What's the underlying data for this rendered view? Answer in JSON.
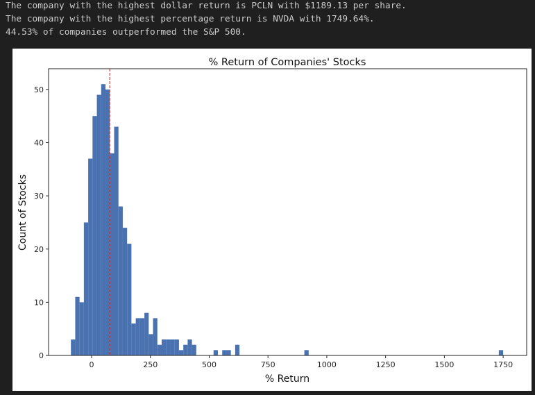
{
  "output_lines": [
    "The company with the highest dollar return is PCLN with $1189.13 per share.",
    "The company with the highest percentage return is NVDA with 1749.64%.",
    "44.53% of companies outperformed the S&P 500."
  ],
  "chart_data": {
    "type": "histogram",
    "title": "% Return of Companies' Stocks",
    "x_label": "% Return",
    "y_label": "Count of Stocks",
    "color": "#4a72b0",
    "bins": [
      -88,
      -69.62,
      -51.24,
      -32.86,
      -14.48,
      3.9,
      22.28,
      40.66,
      59.04,
      77.42,
      95.8,
      114.18,
      132.56,
      150.94,
      169.32,
      187.7,
      206.08,
      224.46,
      242.84,
      261.22,
      279.6,
      297.98,
      316.36,
      334.74,
      353.12,
      371.5,
      389.88,
      408.26,
      426.64,
      445.02,
      463.4,
      481.78,
      500.16,
      518.54,
      536.92,
      555.3,
      573.68,
      592.06,
      610.44,
      628.82,
      647.2,
      665.58,
      683.96,
      702.34,
      720.72,
      739.1,
      757.48,
      775.86,
      794.24,
      812.62,
      831,
      849.38,
      867.76,
      886.14,
      904.52,
      922.9,
      941.28,
      959.66,
      978.04,
      996.42,
      1014.8,
      1033.18,
      1051.56,
      1069.94,
      1088.32,
      1106.7,
      1125.08,
      1143.46,
      1161.84,
      1180.22,
      1198.6,
      1216.98,
      1235.36,
      1253.74,
      1272.12,
      1290.5,
      1308.88,
      1327.26,
      1345.64,
      1364.02,
      1382.4,
      1400.78,
      1419.16,
      1437.54,
      1455.92,
      1474.3,
      1492.68,
      1511.06,
      1529.44,
      1547.82,
      1566.2,
      1584.58,
      1602.96,
      1621.34,
      1639.72,
      1658.1,
      1676.48,
      1694.86,
      1713.24,
      1731.62,
      1750
    ],
    "counts": [
      3,
      11,
      10,
      25,
      37,
      45,
      49,
      51,
      50,
      38,
      43,
      28,
      24,
      21,
      6,
      7,
      7,
      8,
      4,
      7,
      2,
      3,
      3,
      3,
      3,
      1,
      2,
      3,
      2,
      0,
      0,
      0,
      0,
      1,
      0,
      1,
      1,
      0,
      2,
      0,
      0,
      0,
      0,
      0,
      0,
      0,
      0,
      0,
      0,
      0,
      0,
      0,
      0,
      0,
      1,
      0,
      0,
      0,
      0,
      0,
      0,
      0,
      0,
      0,
      0,
      0,
      0,
      0,
      0,
      0,
      0,
      0,
      0,
      0,
      0,
      0,
      0,
      0,
      0,
      0,
      0,
      0,
      0,
      0,
      0,
      0,
      0,
      0,
      0,
      0,
      0,
      0,
      0,
      0,
      0,
      0,
      0,
      0,
      0,
      1
    ],
    "vline": 77,
    "vline_color": "#d62728",
    "xlim": [
      -183,
      1850
    ],
    "ylim": [
      0,
      53.9
    ],
    "xticks": [
      0,
      250,
      500,
      750,
      1000,
      1250,
      1500,
      1750
    ],
    "yticks": [
      0,
      10,
      20,
      30,
      40,
      50
    ]
  }
}
